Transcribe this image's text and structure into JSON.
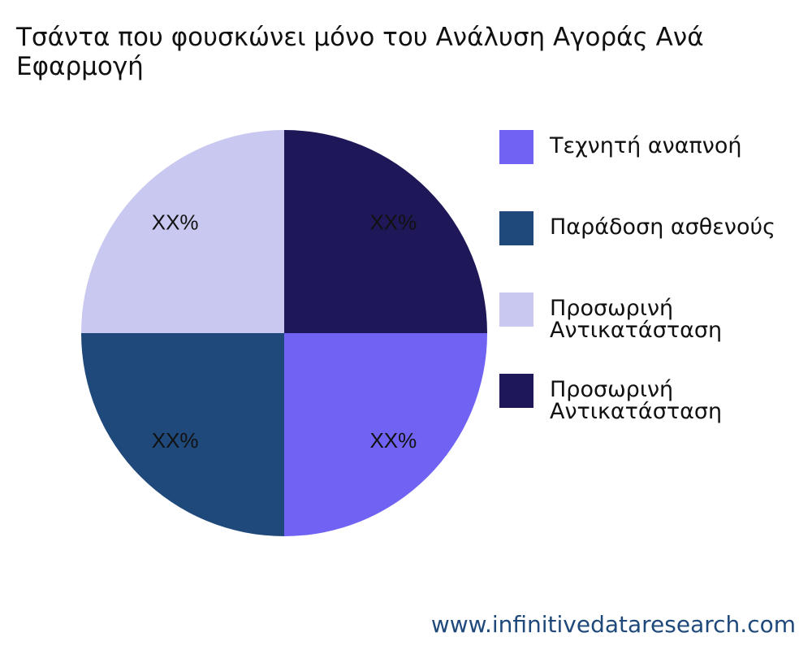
{
  "chart_data": {
    "type": "pie",
    "title": "Τσάντα που φουσκώνει μόνο του Ανάλυση Αγοράς Ανά Εφαρμογή",
    "categories": [
      "Τεχνητή αναπνοή",
      "Παράδοση ασθενούς",
      "Προσωρινή Αντικατάσταση",
      "Προσωρινή Αντικατάσταση"
    ],
    "values": [
      25,
      25,
      25,
      25
    ],
    "value_labels": [
      "XX%",
      "XX%",
      "XX%",
      "XX%"
    ],
    "colors": [
      "#7063f3",
      "#1f497a",
      "#c8c8f0",
      "#1e1858"
    ],
    "legend": "right",
    "source": "www.infinitivedataresearch.com"
  }
}
